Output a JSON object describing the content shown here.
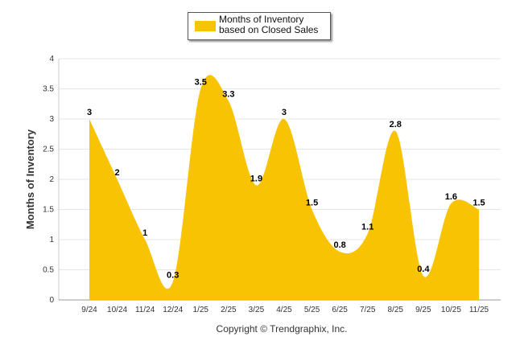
{
  "chart_data": {
    "type": "area",
    "title": "",
    "xlabel": "",
    "ylabel": "Months of Inventory",
    "categories": [
      "9/24",
      "10/24",
      "11/24",
      "12/24",
      "1/25",
      "2/25",
      "3/25",
      "4/25",
      "5/25",
      "6/25",
      "7/25",
      "8/25",
      "9/25",
      "10/25",
      "11/25"
    ],
    "series": [
      {
        "name": "Months of Inventory based on Closed Sales",
        "values": [
          3,
          2,
          1,
          0.3,
          3.5,
          3.3,
          1.9,
          3,
          1.5,
          0.8,
          1.1,
          2.8,
          0.4,
          1.6,
          1.5
        ]
      }
    ],
    "ylim": [
      0,
      4
    ],
    "yticks": [
      "0",
      "0.5",
      "1",
      "1.5",
      "2",
      "2.5",
      "3",
      "3.5",
      "4"
    ],
    "grid": true,
    "legend": "top-center",
    "color": "#F8C303"
  },
  "legend": {
    "label": "Months of Inventory based on Closed Sales"
  },
  "footer": {
    "credit": "Copyright © Trendgraphix, Inc."
  }
}
